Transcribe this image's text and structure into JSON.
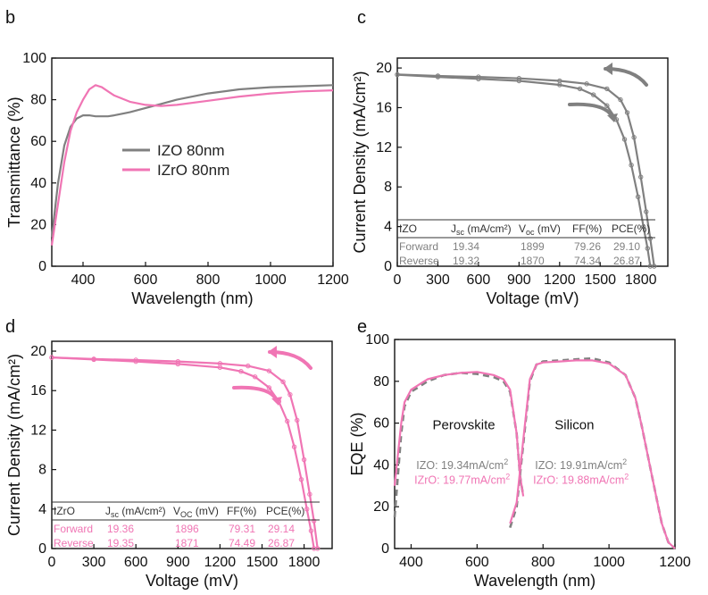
{
  "colors": {
    "izo": "#808080",
    "izro": "#f075b4",
    "axis": "#111111",
    "izo_dark": "#555555"
  },
  "chart_data": [
    {
      "panel": "b",
      "type": "line",
      "xlabel": "Wavelength (nm)",
      "ylabel": "Transmittance (%)",
      "xlim": [
        300,
        1200
      ],
      "ylim": [
        0,
        100
      ],
      "xticks": [
        400,
        600,
        800,
        1000,
        1200
      ],
      "yticks": [
        0,
        20,
        40,
        60,
        80,
        100
      ],
      "legend": "center-left",
      "series": [
        {
          "name": "IZO 80nm",
          "color": "#808080",
          "x": [
            300,
            320,
            340,
            360,
            380,
            400,
            420,
            440,
            460,
            480,
            500,
            550,
            600,
            650,
            700,
            800,
            900,
            1000,
            1100,
            1200
          ],
          "y": [
            14,
            40,
            58,
            67,
            71,
            72.5,
            72.5,
            72,
            72,
            72,
            72.5,
            74,
            76,
            78,
            80,
            83,
            85,
            86,
            86.5,
            87
          ]
        },
        {
          "name": "IZrO 80nm",
          "color": "#f075b4",
          "x": [
            300,
            320,
            340,
            360,
            380,
            400,
            420,
            440,
            460,
            480,
            500,
            550,
            600,
            650,
            700,
            800,
            900,
            1000,
            1100,
            1200
          ],
          "y": [
            10,
            30,
            50,
            65,
            74,
            80,
            85,
            87,
            86,
            84,
            82,
            79,
            77.5,
            77,
            77.5,
            79.5,
            81.5,
            83,
            84,
            84.5
          ]
        }
      ]
    },
    {
      "panel": "c",
      "type": "line",
      "xlabel": "Voltage (mV)",
      "ylabel": "Current Density (mA/cm²)",
      "xlim": [
        0,
        2000
      ],
      "ylim": [
        0,
        21
      ],
      "xticks": [
        0,
        300,
        600,
        900,
        1200,
        1500,
        1800
      ],
      "yticks": [
        0,
        4,
        8,
        12,
        16,
        20
      ],
      "series": [
        {
          "name": "Forward",
          "color": "#808080",
          "x": [
            0,
            300,
            600,
            900,
            1200,
            1400,
            1550,
            1650,
            1700,
            1750,
            1800,
            1840,
            1870,
            1899
          ],
          "y": [
            19.34,
            19.2,
            19.1,
            18.95,
            18.7,
            18.4,
            17.9,
            16.8,
            15.5,
            13.0,
            9.0,
            5.5,
            2.8,
            0
          ]
        },
        {
          "name": "Reverse",
          "color": "#808080",
          "x": [
            0,
            300,
            600,
            900,
            1200,
            1350,
            1450,
            1550,
            1620,
            1680,
            1730,
            1780,
            1820,
            1850,
            1870
          ],
          "y": [
            19.32,
            19.1,
            18.9,
            18.7,
            18.3,
            17.9,
            17.3,
            16.2,
            14.8,
            12.8,
            10.2,
            7.0,
            4.0,
            1.8,
            0
          ]
        }
      ],
      "table": {
        "header": [
          "IZO",
          "Jsc (mA/cm2)",
          "Voc (mV)",
          "FF(%)",
          "PCE(%)"
        ],
        "rows": [
          [
            "Forward",
            "19.34",
            "1899",
            "79.26",
            "29.10"
          ],
          [
            "Reverse",
            "19.32",
            "1870",
            "74.34",
            "26.87"
          ]
        ]
      }
    },
    {
      "panel": "d",
      "type": "line",
      "xlabel": "Voltage (mV)",
      "ylabel": "Current Density (mA/cm²)",
      "xlim": [
        0,
        2000
      ],
      "ylim": [
        0,
        21
      ],
      "xticks": [
        0,
        300,
        600,
        900,
        1200,
        1500,
        1800
      ],
      "yticks": [
        0,
        4,
        8,
        12,
        16,
        20
      ],
      "series": [
        {
          "name": "Forward",
          "color": "#f075b4",
          "x": [
            0,
            300,
            600,
            900,
            1200,
            1400,
            1550,
            1650,
            1700,
            1750,
            1800,
            1840,
            1870,
            1896
          ],
          "y": [
            19.36,
            19.2,
            19.1,
            18.95,
            18.75,
            18.5,
            18.0,
            16.9,
            15.6,
            13.0,
            9.0,
            5.5,
            2.8,
            0
          ]
        },
        {
          "name": "Reverse",
          "color": "#f075b4",
          "x": [
            0,
            300,
            600,
            900,
            1200,
            1350,
            1450,
            1550,
            1620,
            1680,
            1730,
            1780,
            1820,
            1850,
            1871
          ],
          "y": [
            19.35,
            19.15,
            18.95,
            18.7,
            18.35,
            17.95,
            17.4,
            16.3,
            14.9,
            12.9,
            10.3,
            7.0,
            4.0,
            1.8,
            0
          ]
        }
      ],
      "table": {
        "header": [
          "IZrO",
          "Jsc (mA/cm2)",
          "VOC (mV)",
          "FF(%)",
          "PCE(%)"
        ],
        "rows": [
          [
            "Forward",
            "19.36",
            "1896",
            "79.31",
            "29.14"
          ],
          [
            "Reverse",
            "19.35",
            "1871",
            "74.49",
            "26.87"
          ]
        ]
      }
    },
    {
      "panel": "e",
      "type": "line",
      "xlabel": "Wavelength (nm)",
      "ylabel": "EQE (%)",
      "xlim": [
        350,
        1200
      ],
      "ylim": [
        0,
        100
      ],
      "xticks": [
        400,
        600,
        800,
        1000,
        1200
      ],
      "yticks": [
        0,
        20,
        40,
        60,
        80,
        100
      ],
      "regions": [
        "Perovskite",
        "Silicon"
      ],
      "annotations": [
        {
          "text": "IZO: 19.34mA/cm2",
          "color": "#808080"
        },
        {
          "text": "IZrO: 19.77mA/cm2",
          "color": "#f075b4"
        },
        {
          "text": "IZO: 19.91mA/cm2",
          "color": "#808080"
        },
        {
          "text": "IZrO: 19.88mA/cm2",
          "color": "#f075b4"
        }
      ],
      "series": [
        {
          "name": "IZO perovskite",
          "color": "#808080",
          "dash": true,
          "x": [
            350,
            360,
            370,
            380,
            400,
            430,
            450,
            500,
            550,
            600,
            650,
            680,
            700,
            720,
            730,
            740
          ],
          "y": [
            15,
            35,
            55,
            68,
            75,
            78,
            80,
            83,
            84,
            83.5,
            82,
            80,
            75,
            55,
            35,
            25
          ]
        },
        {
          "name": "IZrO perovskite",
          "color": "#f075b4",
          "x": [
            350,
            360,
            370,
            380,
            400,
            430,
            450,
            500,
            550,
            600,
            650,
            680,
            700,
            720,
            730,
            740
          ],
          "y": [
            30,
            45,
            60,
            70,
            76,
            79,
            81,
            83,
            84,
            84.5,
            83,
            81,
            76,
            55,
            35,
            25
          ]
        },
        {
          "name": "IZO silicon",
          "color": "#808080",
          "dash": true,
          "x": [
            700,
            720,
            740,
            760,
            780,
            800,
            850,
            900,
            950,
            1000,
            1050,
            1080,
            1100,
            1130,
            1160,
            1180,
            1200
          ],
          "y": [
            10,
            20,
            50,
            80,
            88,
            89.5,
            90,
            90.5,
            91,
            89,
            83,
            72,
            58,
            35,
            12,
            3,
            0
          ]
        },
        {
          "name": "IZrO silicon",
          "color": "#f075b4",
          "x": [
            700,
            720,
            740,
            760,
            780,
            800,
            850,
            900,
            950,
            1000,
            1050,
            1080,
            1100,
            1130,
            1160,
            1180,
            1200
          ],
          "y": [
            12,
            22,
            52,
            81,
            88,
            89,
            89.5,
            90,
            90,
            88.5,
            83,
            72,
            58,
            35,
            12,
            3,
            0
          ]
        }
      ]
    }
  ]
}
